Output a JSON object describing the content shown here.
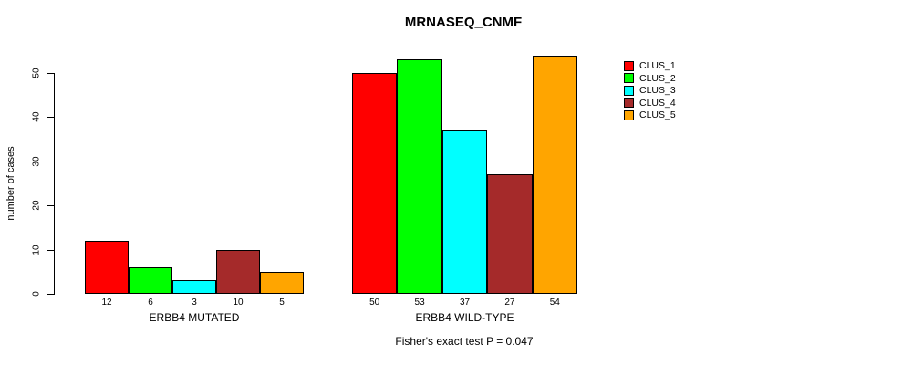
{
  "chart_data": {
    "type": "bar",
    "title": "MRNASEQ_CNMF",
    "ylabel": "number of cases",
    "xlabel": "",
    "footnote": "Fisher's exact test P = 0.047",
    "ylim": [
      0,
      55
    ],
    "yticks": [
      0,
      10,
      20,
      30,
      40,
      50
    ],
    "grid": false,
    "legend_position": "top-right",
    "bar_value_labels_shown": true,
    "categories": [
      "ERBB4 MUTATED",
      "ERBB4 WILD-TYPE"
    ],
    "series": [
      {
        "name": "CLUS_1",
        "color": "#ff0000",
        "values": [
          12,
          50
        ]
      },
      {
        "name": "CLUS_2",
        "color": "#00ff00",
        "values": [
          6,
          53
        ]
      },
      {
        "name": "CLUS_3",
        "color": "#00ffff",
        "values": [
          3,
          37
        ]
      },
      {
        "name": "CLUS_4",
        "color": "#a52a2a",
        "values": [
          10,
          27
        ]
      },
      {
        "name": "CLUS_5",
        "color": "#ffa500",
        "values": [
          5,
          54
        ]
      }
    ]
  }
}
